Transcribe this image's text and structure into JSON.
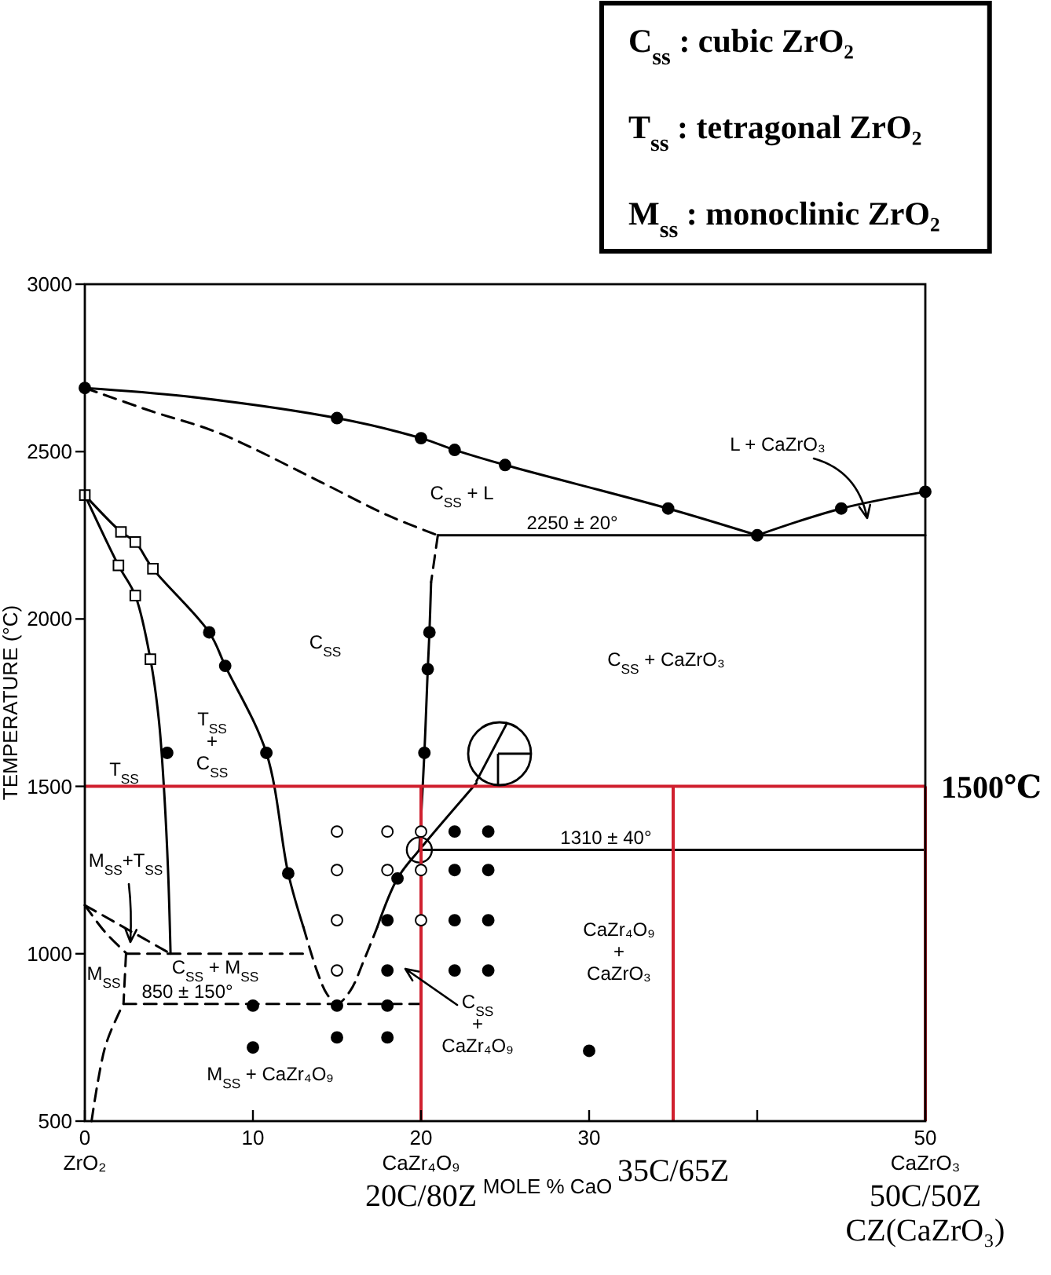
{
  "chart_data": {
    "type": "line",
    "xlabel": "MOLE % CaO",
    "ylabel": "TEMPERATURE (°C)",
    "xlim": [
      0,
      50
    ],
    "ylim": [
      500,
      3000
    ],
    "xticks": [
      {
        "value": 0,
        "label": "0\nZrO₂"
      },
      10,
      {
        "value": 20,
        "label": "20\nCaZr₄O₉"
      },
      30,
      {
        "value": 40,
        "label": null
      },
      {
        "value": 50,
        "label": "50\nCaZrO₃"
      }
    ],
    "yticks": [
      500,
      1000,
      1500,
      2000,
      2500,
      3000
    ],
    "series": [
      {
        "type": "bubble",
        "color": "#ffffff",
        "x": [
          19.9
        ],
        "values": [
          1310
        ],
        "sizes": [
          1
        ]
      },
      {
        "color": "#000000",
        "line_style": "solid",
        "x": [
          0,
          6,
          15,
          20,
          22,
          25,
          34.7,
          40
        ],
        "values": [
          2690,
          2665,
          2600,
          2540,
          2505,
          2460,
          2330,
          2250
        ]
      },
      {
        "color": "#000000",
        "line_style": "solid",
        "x": [
          40,
          45,
          50
        ],
        "values": [
          2250,
          2330,
          2380
        ]
      },
      {
        "color": "#000000",
        "line_style": "solid",
        "x": [
          21,
          50
        ],
        "values": [
          2250,
          2250
        ]
      },
      {
        "color": "#000000",
        "line_style": "dashed",
        "x": [
          0,
          4,
          8,
          14,
          18,
          21
        ],
        "values": [
          2690,
          2620,
          2555,
          2410,
          2310,
          2250
        ]
      },
      {
        "color": "#000000",
        "line_style": "dashed",
        "x": [
          21,
          20.6
        ],
        "values": [
          2250,
          2110
        ]
      },
      {
        "color": "#000000",
        "line_style": "solid",
        "x": [
          20.6,
          20.5,
          20.4,
          20.2,
          19.9
        ],
        "values": [
          2110,
          1960,
          1850,
          1600,
          1310
        ]
      },
      {
        "color": "#000000",
        "line_style": "solid",
        "x": [
          23.3,
          19.9,
          18.6,
          17.4
        ],
        "values": [
          1510,
          1310,
          1225,
          1080
        ]
      },
      {
        "color": "#000000",
        "line_style": "dashed",
        "x": [
          13,
          13.8,
          14.4,
          15,
          15.8,
          16.6,
          17.4
        ],
        "values": [
          1080,
          950,
          880,
          850,
          890,
          980,
          1080
        ]
      },
      {
        "color": "#000000",
        "line_style": "solid",
        "x": [
          0,
          2.15,
          3,
          4.05,
          7.4,
          8.35,
          10.8,
          12.1,
          13
        ],
        "values": [
          2370,
          2260,
          2230,
          2150,
          1960,
          1860,
          1600,
          1240,
          1080
        ]
      },
      {
        "color": "#000000",
        "line_style": "solid",
        "x": [
          0,
          2,
          3,
          3.9,
          4.4,
          4.7,
          4.95,
          5.1
        ],
        "values": [
          2370,
          2160,
          2070,
          1880,
          1700,
          1500,
          1250,
          1000
        ]
      },
      {
        "color": "#000000",
        "line_style": "dashed",
        "x": [
          2.5,
          13.3
        ],
        "values": [
          1000,
          1000
        ]
      },
      {
        "color": "#000000",
        "line_style": "dashed",
        "x": [
          0,
          5.1
        ],
        "values": [
          1145,
          1000
        ]
      },
      {
        "color": "#000000",
        "line_style": "dashed",
        "x": [
          0,
          1.2,
          2.5
        ],
        "values": [
          1145,
          1065,
          1000
        ]
      },
      {
        "color": "#000000",
        "line_style": "dashed",
        "x": [
          2.45,
          2.3
        ],
        "values": [
          1000,
          850
        ]
      },
      {
        "color": "#000000",
        "line_style": "dashed",
        "x": [
          2.3,
          19.9
        ],
        "values": [
          850,
          850
        ]
      },
      {
        "color": "#000000",
        "line_style": "dashed",
        "x": [
          0.4,
          1.2,
          2,
          2.3
        ],
        "values": [
          500,
          720,
          820,
          850
        ]
      },
      {
        "color": "#000000",
        "line_style": "solid",
        "x": [
          19.9,
          50
        ],
        "values": [
          1310,
          1310
        ]
      },
      {
        "type": "scatter",
        "marker": "circle",
        "color": "#000000",
        "x": [
          0,
          15,
          20,
          22,
          25,
          34.7,
          40,
          45,
          50,
          7.4,
          8.35,
          10.8,
          20.5,
          20.4,
          20.2,
          12.1,
          18.6,
          4.9,
          22,
          24,
          22,
          24,
          18,
          22,
          24,
          18,
          22,
          24,
          10,
          15,
          18,
          15,
          18,
          10,
          30
        ],
        "values": [
          2690,
          2600,
          2540,
          2505,
          2460,
          2330,
          2250,
          2330,
          2380,
          1960,
          1860,
          1600,
          1960,
          1850,
          1600,
          1240,
          1225,
          1600,
          1365,
          1365,
          1250,
          1250,
          1100,
          1100,
          1100,
          950,
          950,
          950,
          845,
          845,
          845,
          750,
          750,
          720,
          710
        ]
      },
      {
        "type": "scatter",
        "marker": "circle",
        "color": "#ffffff",
        "x": [
          15,
          18,
          20,
          15,
          18,
          20,
          15,
          20,
          15
        ],
        "values": [
          1365,
          1365,
          1365,
          1250,
          1250,
          1250,
          1100,
          1100,
          950
        ]
      },
      {
        "type": "scatter",
        "marker": "square",
        "color": "#ffffff",
        "x": [
          0,
          2.15,
          3,
          4.05,
          2,
          3,
          3.9
        ],
        "values": [
          2370,
          2260,
          2230,
          2150,
          2160,
          2070,
          1880
        ]
      }
    ],
    "ref_lines": [
      {
        "axis": "y",
        "value": 1500,
        "label": "1500℃",
        "color": "#d0202f"
      },
      {
        "axis": "x",
        "value": 20,
        "label": "20C/80Z",
        "color": "#d0202f"
      },
      {
        "axis": "x",
        "value": 35,
        "label": "35C/65Z",
        "color": "#d0202f"
      },
      {
        "axis": "x",
        "value": 50,
        "label": "50C/50Z\nCZ(CaZrO₃)",
        "color": "#d0202f"
      }
    ],
    "annotations": [
      "C$_{ss}$ : cubic ZrO₂",
      "T$_{ss}$ : tetragonal ZrO₂",
      "M$_{ss}$ : monoclinic ZrO₂",
      "C$_{SS}$ + L",
      "L + CaZrO₃",
      "C$_{SS}$",
      "C$_{SS}$ + CaZrO₃",
      "T$_{SS}$",
      "T$_{SS}$\n+\nC$_{SS}$",
      "M$_{SS}$+T$_{SS}$",
      "M$_{SS}$",
      "C$_{SS}$ + M$_{SS}$",
      "M$_{SS}$ + CaZr₄O₉",
      "C$_{SS}$\n+\nCaZr₄O₉",
      "CaZr₄O₉\n+\nCaZrO₃",
      {
        "text": "2250 ± 20°",
        "x": 29,
        "y": 2250
      },
      {
        "text": "1310 ± 40°",
        "x": 31,
        "y": 1310
      },
      {
        "text": "850 ± 150°",
        "x": 6.1,
        "y": 850
      }
    ]
  }
}
